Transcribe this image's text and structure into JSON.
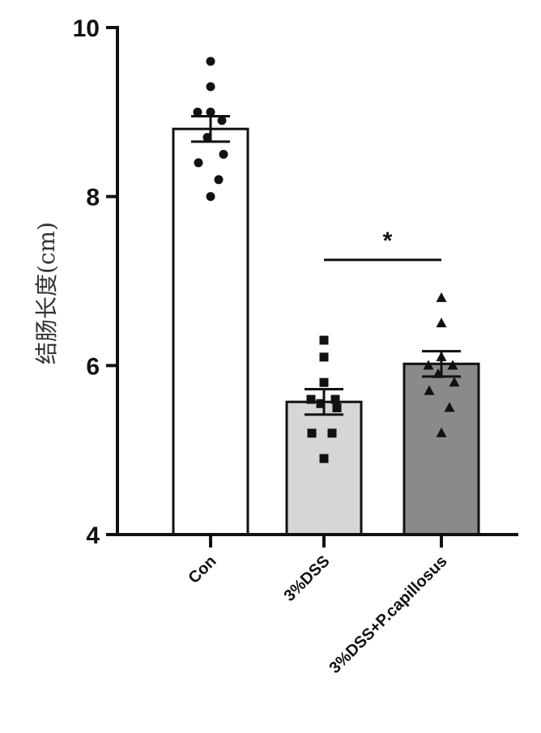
{
  "chart_data": {
    "type": "bar",
    "title": "",
    "xlabel": "",
    "ylabel": "结肠长度(cm)",
    "ylim": [
      4,
      10
    ],
    "yticks": [
      4,
      6,
      8,
      10
    ],
    "grid": false,
    "legend": "none",
    "categories": [
      "Con",
      "3%DSS",
      "3%DSS+P.capillosus"
    ],
    "values": [
      8.8,
      5.57,
      6.02
    ],
    "sem": [
      0.15,
      0.15,
      0.15
    ],
    "bar_fills": [
      "#ffffff",
      "#d6d6d6",
      "#8a8a8a"
    ],
    "point_markers": [
      "circle",
      "square",
      "triangle"
    ],
    "points": [
      [
        9.6,
        9.3,
        9.0,
        9.0,
        8.9,
        8.7,
        8.5,
        8.4,
        8.2,
        8.0
      ],
      [
        6.3,
        6.1,
        5.8,
        5.6,
        5.6,
        5.55,
        5.5,
        5.2,
        5.2,
        4.9
      ],
      [
        6.8,
        6.5,
        6.1,
        6.0,
        6.0,
        5.9,
        5.8,
        5.7,
        5.5,
        5.2
      ]
    ],
    "significance": [
      {
        "from": "3%DSS",
        "to": "3%DSS+P.capillosus",
        "label": "*",
        "y": 7.25
      }
    ]
  }
}
